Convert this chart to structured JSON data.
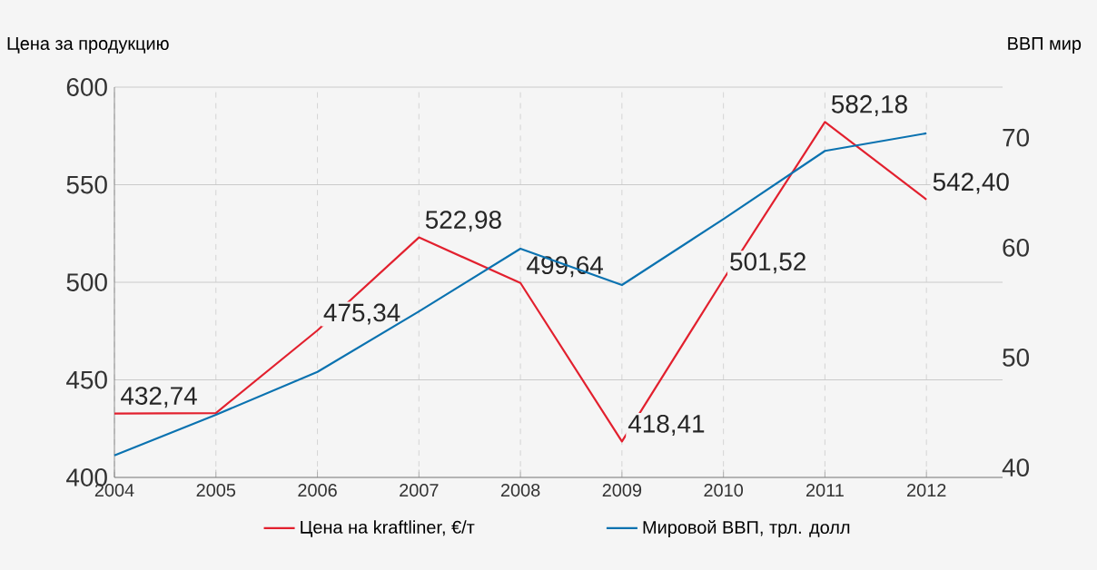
{
  "chart_data": {
    "type": "line",
    "ylabel": "Цена за продукцию",
    "y2label": "ВВП мир",
    "categories": [
      "2004",
      "2005",
      "2006",
      "2007",
      "2008",
      "2009",
      "2010",
      "2011",
      "2012"
    ],
    "series": [
      {
        "name": "Цена на kraftliner, €/т",
        "color": "#e2202e",
        "values": [
          432.74,
          433,
          475.34,
          522.98,
          499.64,
          418.41,
          501.52,
          582.18,
          542.4
        ],
        "value_labels": [
          "432,74",
          null,
          "475,34",
          "522,98",
          "499,64",
          "418,41",
          "501,52",
          "582,18",
          "542,40"
        ]
      },
      {
        "name": "Мировой ВВП, трл. долл",
        "color": "#0a72b0",
        "axis": "y2",
        "values": [
          41.5,
          45.2,
          49.1,
          54.6,
          60.3,
          57.0,
          63.0,
          69.2,
          70.8
        ]
      }
    ],
    "ylim": [
      400,
      600
    ],
    "yticks": [
      400,
      450,
      500,
      550,
      600
    ],
    "y2lim": [
      39.5,
      75
    ],
    "y2ticks": [
      40,
      50,
      60,
      70
    ],
    "grid": true,
    "legend": "bottom"
  }
}
